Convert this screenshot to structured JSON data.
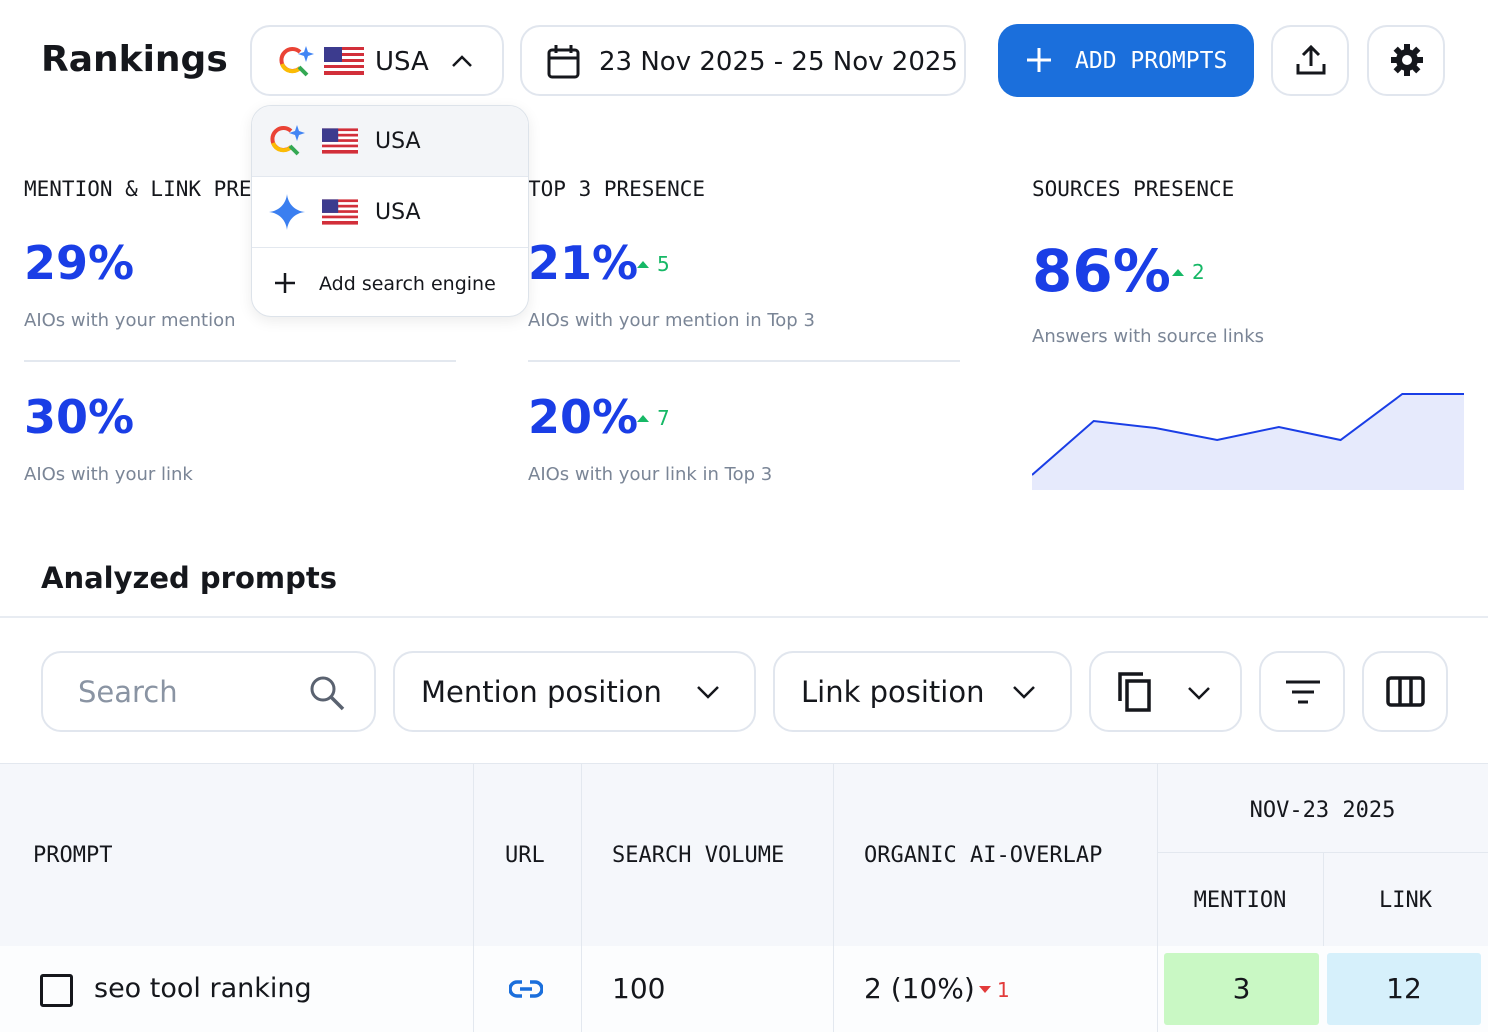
{
  "header": {
    "title": "Rankings",
    "engine": "USA",
    "date_range": "23 Nov 2025 - 25 Nov 2025",
    "add_button": "ADD PROMPTS"
  },
  "dropdown": {
    "options": [
      "USA",
      "USA"
    ],
    "add_label": "Add search engine"
  },
  "metrics": [
    {
      "title": "MENTION & LINK PRESENCE",
      "items": [
        {
          "value": "29%",
          "label": "AIOs with your mention"
        },
        {
          "value": "30%",
          "label": "AIOs with your link"
        }
      ]
    },
    {
      "title": "TOP 3 PRESENCE",
      "items": [
        {
          "value": "21%",
          "delta": 5,
          "label": "AIOs with your mention in Top 3"
        },
        {
          "value": "20%",
          "delta": 7,
          "label": "AIOs with your link in Top 3"
        }
      ]
    },
    {
      "title": "SOURCES PRESENCE",
      "items": [
        {
          "value": "86%",
          "delta": 2,
          "label": "Answers with source links"
        }
      ],
      "trend": [
        15,
        69,
        62,
        50,
        63,
        50,
        96,
        96
      ]
    }
  ],
  "prompts": {
    "title": "Analyzed prompts",
    "filters": {
      "search": "Search",
      "mention_position": "Mention position",
      "link_position": "Link position"
    },
    "table": {
      "columns": [
        "PROMPT",
        "URL",
        "SEARCH VOLUME",
        "ORGANIC AI-OVERLAP"
      ],
      "group_header": "NOV-23 2025",
      "sub_columns": [
        "MENTION",
        "LINK"
      ],
      "rows": [
        {
          "prompt": "seo tool ranking",
          "search_volume": 100,
          "overlap": "2 (10%)",
          "overlap_delta": 1,
          "mention": 3,
          "link": 12
        }
      ]
    }
  }
}
